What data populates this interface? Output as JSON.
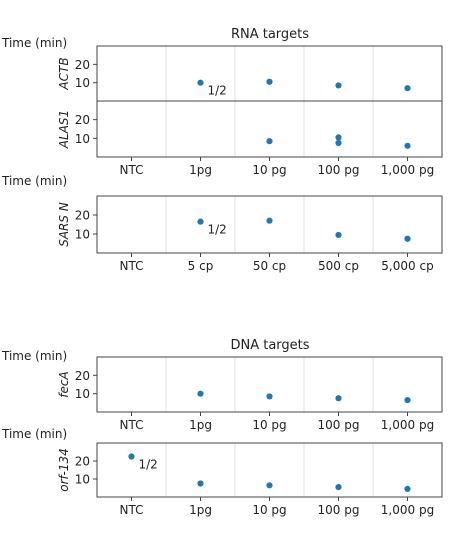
{
  "color": "#1f77b4",
  "ticks": [
    10,
    20
  ],
  "time_label": "Time (min)",
  "chart_data": [
    {
      "type": "scatter",
      "title": "RNA targets",
      "xlabel": "",
      "ylabel": "ACTB",
      "y_unit": "Time (min)",
      "categories": [
        "NTC",
        "1pg",
        "10 pg",
        "100 pg",
        "1,000 pg"
      ],
      "ylim": [
        0,
        30
      ],
      "grid": "vertical",
      "points": [
        {
          "x": "1pg",
          "y": 10,
          "note": "1/2"
        },
        {
          "x": "10 pg",
          "y": 10.5
        },
        {
          "x": "100 pg",
          "y": 8.5
        },
        {
          "x": "1,000 pg",
          "y": 7
        }
      ]
    },
    {
      "type": "scatter",
      "title": "",
      "xlabel": "",
      "ylabel": "ALAS1",
      "categories": [
        "NTC",
        "1pg",
        "10 pg",
        "100 pg",
        "1,000 pg"
      ],
      "ylim": [
        0,
        30
      ],
      "grid": "vertical",
      "points": [
        {
          "x": "10 pg",
          "y": 8.5
        },
        {
          "x": "100 pg",
          "y": 10.5
        },
        {
          "x": "100 pg",
          "y": 7.5
        },
        {
          "x": "1,000 pg",
          "y": 6
        }
      ]
    },
    {
      "type": "scatter",
      "title": "",
      "xlabel": "",
      "ylabel": "SARS N",
      "y_unit": "Time (min)",
      "categories": [
        "NTC",
        "5 cp",
        "50 cp",
        "500 cp",
        "5,000 cp"
      ],
      "ylim": [
        0,
        30
      ],
      "grid": "vertical",
      "points": [
        {
          "x": "5 cp",
          "y": 16.5,
          "note": "1/2"
        },
        {
          "x": "50 cp",
          "y": 17
        },
        {
          "x": "500 cp",
          "y": 9.5
        },
        {
          "x": "5,000 cp",
          "y": 7.5
        }
      ]
    },
    {
      "type": "scatter",
      "title": "DNA targets",
      "xlabel": "",
      "ylabel": "fecA",
      "y_unit": "Time (min)",
      "categories": [
        "NTC",
        "1pg",
        "10 pg",
        "100 pg",
        "1,000 pg"
      ],
      "ylim": [
        0,
        30
      ],
      "grid": "vertical",
      "points": [
        {
          "x": "1pg",
          "y": 10
        },
        {
          "x": "10 pg",
          "y": 8.5
        },
        {
          "x": "100 pg",
          "y": 7.5
        },
        {
          "x": "1,000 pg",
          "y": 6.5
        }
      ]
    },
    {
      "type": "scatter",
      "title": "",
      "xlabel": "",
      "ylabel": "orf-134",
      "y_unit": "Time (min)",
      "categories": [
        "NTC",
        "1pg",
        "10 pg",
        "100 pg",
        "1,000 pg"
      ],
      "ylim": [
        0,
        30
      ],
      "grid": "vertical",
      "points": [
        {
          "x": "NTC",
          "y": 22.5,
          "note": "1/2"
        },
        {
          "x": "1pg",
          "y": 7.5
        },
        {
          "x": "10 pg",
          "y": 6.5
        },
        {
          "x": "100 pg",
          "y": 5.5
        },
        {
          "x": "1,000 pg",
          "y": 4.5
        }
      ]
    }
  ]
}
